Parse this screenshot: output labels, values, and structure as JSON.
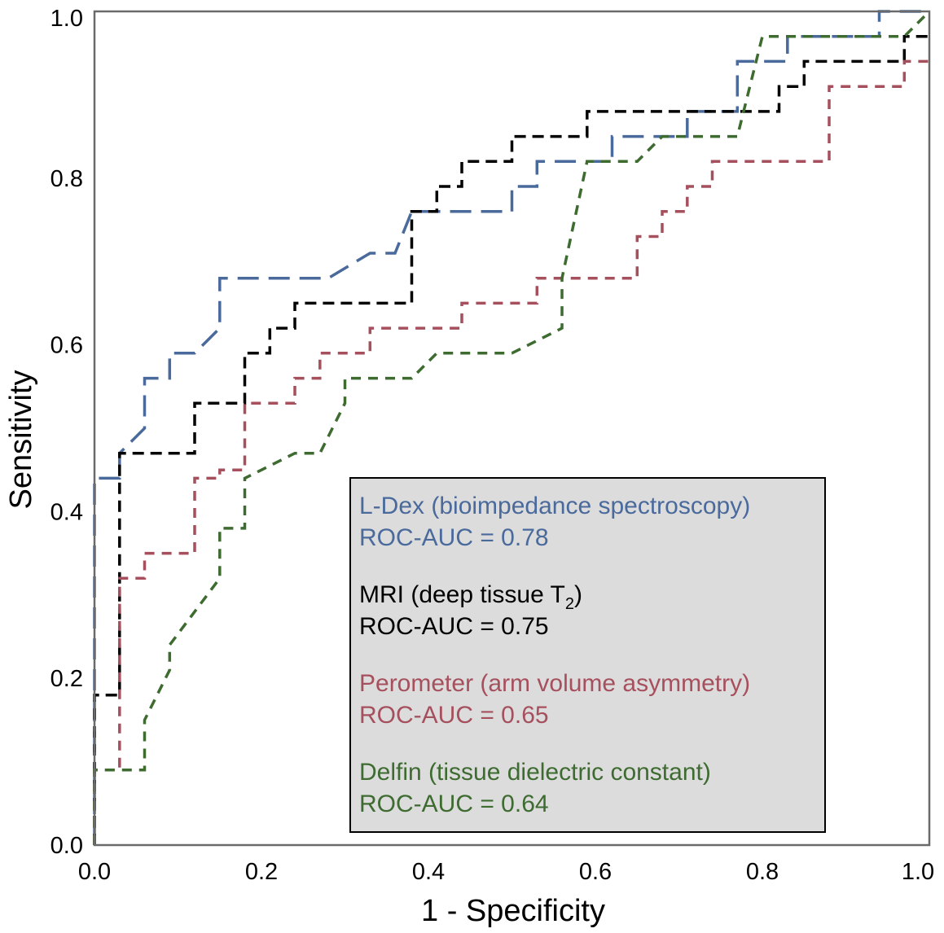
{
  "chart_data": {
    "type": "line",
    "xlabel": "1 - Specificity",
    "ylabel": "Sensitivity",
    "xlim": [
      0,
      1
    ],
    "ylim": [
      0,
      1
    ],
    "x_ticks": [
      "0.0",
      "0.2",
      "0.4",
      "0.6",
      "0.8",
      "1.0"
    ],
    "y_ticks": [
      "0.0",
      "0.2",
      "0.4",
      "0.6",
      "0.8",
      "1.0"
    ],
    "grid": false,
    "legend_placement": "bottom-right",
    "series": [
      {
        "name": "L-Dex (bioimpedance spectroscopy)",
        "auc_label": "ROC-AUC = 0.78",
        "color": "#4a6a9c",
        "dash": "long",
        "x": [
          0.0,
          0.0,
          0.03,
          0.03,
          0.06,
          0.06,
          0.09,
          0.09,
          0.12,
          0.15,
          0.15,
          0.28,
          0.33,
          0.36,
          0.38,
          0.5,
          0.5,
          0.53,
          0.53,
          0.62,
          0.62,
          0.71,
          0.71,
          0.77,
          0.77,
          0.83,
          0.83,
          0.94,
          0.94,
          1.0
        ],
        "y": [
          0.0,
          0.44,
          0.44,
          0.47,
          0.5,
          0.56,
          0.56,
          0.59,
          0.59,
          0.62,
          0.68,
          0.68,
          0.71,
          0.71,
          0.76,
          0.76,
          0.79,
          0.79,
          0.82,
          0.82,
          0.85,
          0.85,
          0.88,
          0.88,
          0.94,
          0.94,
          0.97,
          0.97,
          1.0,
          1.0
        ]
      },
      {
        "name": "MRI (deep tissue T",
        "name_subscript": "2",
        "name_suffix": ")",
        "auc_label": "ROC-AUC = 0.75",
        "color": "#000000",
        "dash": "medium",
        "x": [
          0.0,
          0.0,
          0.03,
          0.03,
          0.12,
          0.12,
          0.18,
          0.18,
          0.21,
          0.21,
          0.24,
          0.24,
          0.38,
          0.38,
          0.41,
          0.41,
          0.44,
          0.44,
          0.5,
          0.5,
          0.59,
          0.59,
          0.82,
          0.82,
          0.85,
          0.85,
          0.97,
          0.97,
          1.0
        ],
        "y": [
          0.0,
          0.18,
          0.18,
          0.47,
          0.47,
          0.53,
          0.53,
          0.59,
          0.59,
          0.62,
          0.62,
          0.65,
          0.65,
          0.76,
          0.76,
          0.79,
          0.79,
          0.82,
          0.82,
          0.85,
          0.85,
          0.88,
          0.88,
          0.91,
          0.91,
          0.94,
          0.94,
          0.97,
          0.97
        ]
      },
      {
        "name": "Perometer (arm volume asymmetry)",
        "auc_label": "ROC-AUC = 0.65",
        "color": "#a6505e",
        "dash": "short",
        "x": [
          0.0,
          0.0,
          0.03,
          0.03,
          0.06,
          0.06,
          0.12,
          0.12,
          0.15,
          0.15,
          0.18,
          0.18,
          0.24,
          0.24,
          0.27,
          0.27,
          0.33,
          0.33,
          0.44,
          0.44,
          0.53,
          0.53,
          0.56,
          0.56,
          0.65,
          0.65,
          0.68,
          0.68,
          0.71,
          0.71,
          0.74,
          0.74,
          0.88,
          0.88,
          0.97,
          0.97,
          1.0
        ],
        "y": [
          0.0,
          0.09,
          0.09,
          0.32,
          0.32,
          0.35,
          0.35,
          0.44,
          0.44,
          0.45,
          0.45,
          0.53,
          0.53,
          0.56,
          0.56,
          0.59,
          0.59,
          0.62,
          0.62,
          0.65,
          0.65,
          0.68,
          0.68,
          0.68,
          0.68,
          0.73,
          0.73,
          0.76,
          0.76,
          0.79,
          0.79,
          0.82,
          0.82,
          0.91,
          0.91,
          0.94,
          0.94
        ]
      },
      {
        "name": "Delfin (tissue dielectric constant)",
        "auc_label": "ROC-AUC = 0.64",
        "color": "#3d6b30",
        "dash": "short",
        "x": [
          0.0,
          0.0,
          0.06,
          0.06,
          0.09,
          0.09,
          0.15,
          0.15,
          0.18,
          0.18,
          0.24,
          0.27,
          0.3,
          0.3,
          0.38,
          0.41,
          0.5,
          0.56,
          0.56,
          0.59,
          0.59,
          0.65,
          0.68,
          0.77,
          0.8,
          0.97,
          0.97,
          1.0
        ],
        "y": [
          0.0,
          0.09,
          0.09,
          0.15,
          0.21,
          0.24,
          0.32,
          0.38,
          0.38,
          0.44,
          0.47,
          0.47,
          0.53,
          0.56,
          0.56,
          0.59,
          0.59,
          0.62,
          0.68,
          0.82,
          0.82,
          0.82,
          0.85,
          0.85,
          0.97,
          0.97,
          0.97,
          1.0
        ]
      }
    ]
  }
}
